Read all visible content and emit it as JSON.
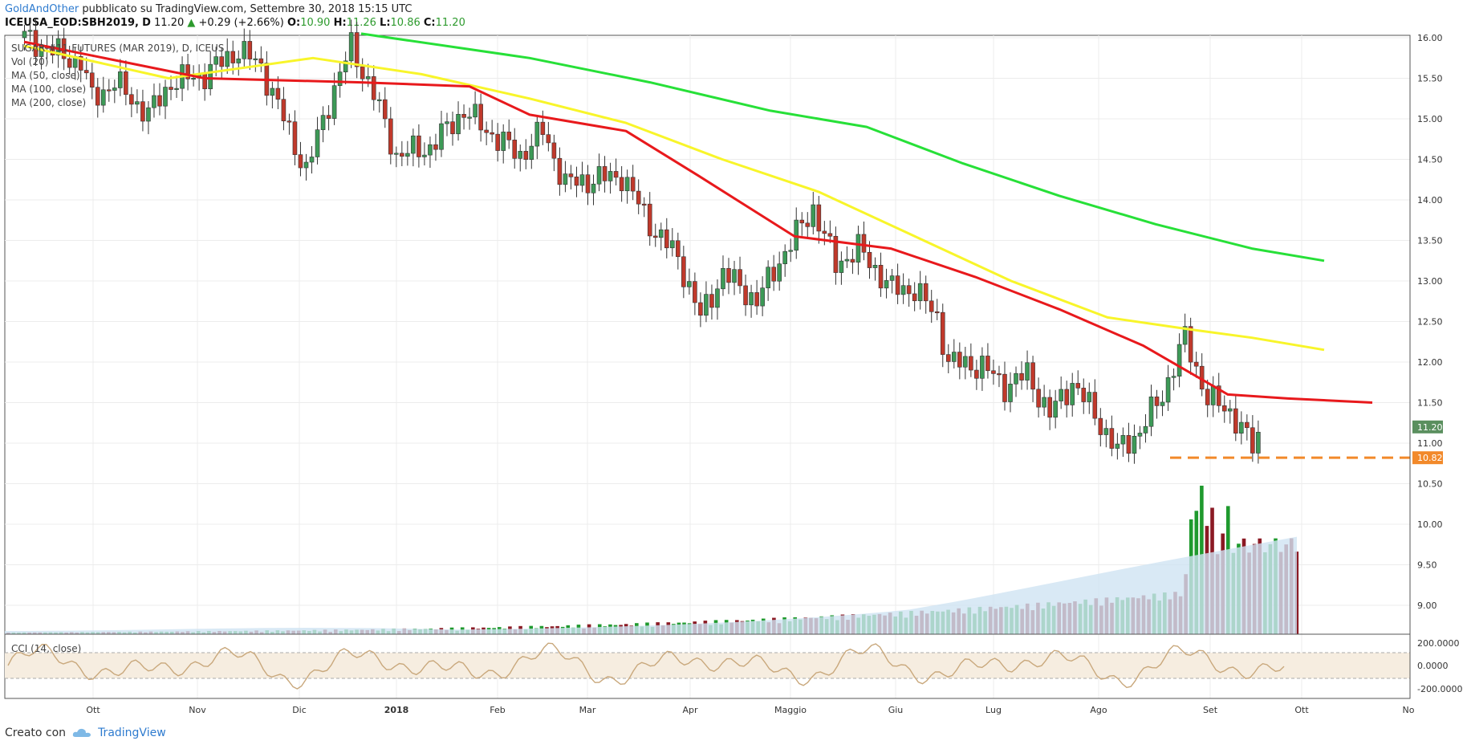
{
  "header": {
    "author": "GoldAndOther",
    "published_text": "pubblicato su TradingView.com, Settembre 30, 2018 15:15 UTC",
    "symbol": "ICEUSA_EOD:SBH2019,",
    "interval": "D",
    "price": "11.20",
    "change_arrow": "▲",
    "change": "+0.29 (+2.66%)",
    "o_label": "O:",
    "o_value": "10.90",
    "h_label": "H:",
    "h_value": "11.26",
    "l_label": "L:",
    "l_value": "10.86",
    "c_label": "C:",
    "c_value": "11.20"
  },
  "legend": {
    "title": "SUGAR #11 FUTURES (MAR 2019), D, ICEUS",
    "items": [
      "Vol (20)",
      "MA (50, close)",
      "MA (100, close)",
      "MA (200, close)"
    ]
  },
  "cci_label": "CCI (14, close)",
  "footer": {
    "created_with": "Creato con",
    "brand": "TradingView"
  },
  "colors": {
    "up": "#3d9a57",
    "down": "#c0392b",
    "ma50": "#e8191c",
    "ma100": "#f8f52a",
    "ma200": "#27e038",
    "support": "#f2892a",
    "cci": "#c9a87c",
    "grid": "#ececec"
  },
  "chart_data": {
    "type": "candlestick",
    "x_axis_labels": [
      "Ott",
      "Nov",
      "Dic",
      "2018",
      "Feb",
      "Mar",
      "Apr",
      "Maggio",
      "Giu",
      "Lug",
      "Ago",
      "Set",
      "Ott",
      "No"
    ],
    "price_axis": {
      "ticks": [
        "16.00",
        "15.50",
        "15.00",
        "14.50",
        "14.00",
        "13.50",
        "13.00",
        "12.50",
        "12.00",
        "11.50",
        "11.00",
        "10.50",
        "10.00",
        "9.50",
        "9.00"
      ],
      "range": [
        8.8,
        16.0
      ]
    },
    "last_price": "11.20",
    "support_level": "10.82",
    "price_path": [
      [
        0,
        16.0
      ],
      [
        0.03,
        15.8
      ],
      [
        0.05,
        15.7
      ],
      [
        0.06,
        15.25
      ],
      [
        0.08,
        15.45
      ],
      [
        0.11,
        15.05
      ],
      [
        0.13,
        15.45
      ],
      [
        0.16,
        15.55
      ],
      [
        0.19,
        15.85
      ],
      [
        0.21,
        15.65
      ],
      [
        0.23,
        15.0
      ],
      [
        0.25,
        14.35
      ],
      [
        0.27,
        15.2
      ],
      [
        0.29,
        15.9
      ],
      [
        0.31,
        15.3
      ],
      [
        0.33,
        14.55
      ],
      [
        0.36,
        14.65
      ],
      [
        0.39,
        15.1
      ],
      [
        0.42,
        14.75
      ],
      [
        0.44,
        14.55
      ],
      [
        0.46,
        14.85
      ],
      [
        0.48,
        14.2
      ],
      [
        0.53,
        14.3
      ],
      [
        0.56,
        13.6
      ],
      [
        0.58,
        13.3
      ],
      [
        0.6,
        12.55
      ],
      [
        0.62,
        13.1
      ],
      [
        0.65,
        12.75
      ],
      [
        0.67,
        13.25
      ],
      [
        0.7,
        13.9
      ],
      [
        0.72,
        13.2
      ],
      [
        0.74,
        13.4
      ],
      [
        0.77,
        12.9
      ],
      [
        0.79,
        12.9
      ],
      [
        0.81,
        12.55
      ],
      [
        0.82,
        12.0
      ],
      [
        0.85,
        11.95
      ],
      [
        0.87,
        11.7
      ],
      [
        0.89,
        11.85
      ],
      [
        0.91,
        11.35
      ],
      [
        0.93,
        11.75
      ],
      [
        0.95,
        11.35
      ],
      [
        0.97,
        10.9
      ],
      [
        0.99,
        11.15
      ],
      [
        1.01,
        11.6
      ],
      [
        1.03,
        12.3
      ],
      [
        1.05,
        11.55
      ],
      [
        1.07,
        11.4
      ],
      [
        1.09,
        10.95
      ],
      [
        1.1,
        11.2
      ]
    ],
    "ma50": [
      [
        0,
        15.95
      ],
      [
        0.15,
        15.5
      ],
      [
        0.28,
        15.45
      ],
      [
        0.37,
        15.4
      ],
      [
        0.42,
        15.05
      ],
      [
        0.5,
        14.85
      ],
      [
        0.56,
        14.3
      ],
      [
        0.64,
        13.55
      ],
      [
        0.72,
        13.4
      ],
      [
        0.79,
        13.05
      ],
      [
        0.86,
        12.65
      ],
      [
        0.93,
        12.2
      ],
      [
        1.0,
        11.6
      ],
      [
        1.05,
        11.55
      ],
      [
        1.12,
        11.5
      ]
    ],
    "ma100": [
      [
        0,
        15.9
      ],
      [
        0.12,
        15.5
      ],
      [
        0.24,
        15.75
      ],
      [
        0.33,
        15.55
      ],
      [
        0.42,
        15.25
      ],
      [
        0.5,
        14.95
      ],
      [
        0.58,
        14.5
      ],
      [
        0.66,
        14.1
      ],
      [
        0.74,
        13.55
      ],
      [
        0.82,
        13.0
      ],
      [
        0.9,
        12.55
      ],
      [
        0.97,
        12.4
      ],
      [
        1.02,
        12.3
      ],
      [
        1.08,
        12.15
      ]
    ],
    "ma200": [
      [
        0.28,
        16.05
      ],
      [
        0.42,
        15.75
      ],
      [
        0.52,
        15.45
      ],
      [
        0.62,
        15.1
      ],
      [
        0.7,
        14.9
      ],
      [
        0.78,
        14.45
      ],
      [
        0.86,
        14.05
      ],
      [
        0.94,
        13.7
      ],
      [
        1.02,
        13.4
      ],
      [
        1.08,
        13.25
      ]
    ],
    "cci_axis": {
      "ticks": [
        "200.0000",
        "0.0000",
        "-200.0000"
      ],
      "range": [
        -250,
        250
      ]
    }
  }
}
